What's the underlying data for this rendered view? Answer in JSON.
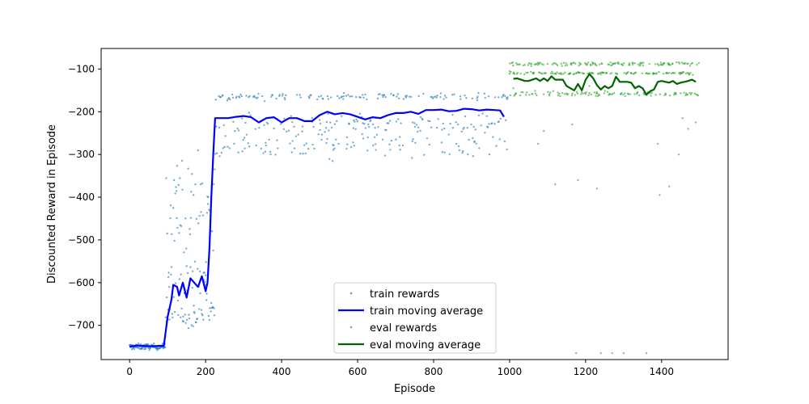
{
  "chart_data": {
    "type": "scatter",
    "title": "",
    "xlabel": "Episode",
    "ylabel": "Discounted Reward in Episode",
    "xlim": [
      -75,
      1575
    ],
    "ylim": [
      -780,
      -52
    ],
    "x_ticks": [
      0,
      200,
      400,
      600,
      800,
      1000,
      1200,
      1400
    ],
    "y_ticks": [
      -100,
      -200,
      -300,
      -400,
      -500,
      -600,
      -700
    ],
    "x_tick_labels": [
      "0",
      "200",
      "400",
      "600",
      "800",
      "1000",
      "1200",
      "1400"
    ],
    "y_tick_labels": [
      "−100",
      "−200",
      "−300",
      "−400",
      "−500",
      "−600",
      "−700"
    ],
    "grid": false,
    "legend_position": "bottom-center",
    "colors": {
      "train_rewards": "#1f77b4",
      "train_moving_average": "#0000ff",
      "eval_rewards": "#2ca02c",
      "eval_moving_average": "#006400"
    },
    "series": [
      {
        "name": "train rewards",
        "kind": "scatter",
        "segments": [
          {
            "x_start": 0,
            "x_end": 95,
            "clusters": [
              [
                -750,
                5
              ]
            ]
          },
          {
            "x_start": 95,
            "x_end": 205,
            "clusters": [
              [
                -680,
                18
              ],
              [
                -600,
                60
              ],
              [
                -420,
                90
              ]
            ]
          },
          {
            "x_start": 205,
            "x_end": 225,
            "clusters": [
              [
                -670,
                15
              ],
              [
                -400,
                120
              ]
            ]
          },
          {
            "x_start": 225,
            "x_end": 1000,
            "clusters": [
              [
                -165,
                6
              ],
              [
                -230,
                15
              ],
              [
                -280,
                25
              ]
            ]
          }
        ]
      },
      {
        "name": "train moving average",
        "kind": "line",
        "x": [
          0,
          20,
          50,
          80,
          90,
          100,
          110,
          115,
          125,
          130,
          140,
          150,
          160,
          170,
          180,
          190,
          200,
          205,
          210,
          215,
          220,
          225,
          240,
          260,
          280,
          300,
          320,
          340,
          360,
          380,
          400,
          420,
          440,
          460,
          480,
          500,
          520,
          540,
          560,
          580,
          600,
          620,
          640,
          660,
          680,
          700,
          720,
          740,
          760,
          780,
          800,
          820,
          840,
          860,
          880,
          900,
          920,
          940,
          960,
          975,
          985
        ],
        "y": [
          -750,
          -747,
          -749,
          -748,
          -748,
          -680,
          -640,
          -605,
          -610,
          -630,
          -600,
          -635,
          -590,
          -600,
          -610,
          -585,
          -620,
          -600,
          -520,
          -400,
          -300,
          -215,
          -215,
          -215,
          -212,
          -210,
          -213,
          -225,
          -215,
          -213,
          -225,
          -215,
          -215,
          -222,
          -222,
          -208,
          -200,
          -206,
          -203,
          -206,
          -212,
          -218,
          -213,
          -215,
          -208,
          -203,
          -203,
          -200,
          -205,
          -196,
          -196,
          -195,
          -199,
          -198,
          -193,
          -194,
          -197,
          -195,
          -196,
          -197,
          -212
        ]
      },
      {
        "name": "eval rewards",
        "kind": "scatter",
        "segments": [
          {
            "x_start": 1000,
            "x_end": 1500,
            "clusters": [
              [
                -88,
                3
              ],
              [
                -110,
                2
              ],
              [
                -158,
                4
              ]
            ]
          }
        ],
        "outliers": [
          [
            1000,
            -105
          ],
          [
            1010,
            -145
          ],
          [
            1075,
            -275
          ],
          [
            1090,
            -245
          ],
          [
            1120,
            -370
          ],
          [
            1165,
            -230
          ],
          [
            1175,
            -765
          ],
          [
            1180,
            -360
          ],
          [
            1210,
            -140
          ],
          [
            1230,
            -380
          ],
          [
            1240,
            -765
          ],
          [
            1270,
            -765
          ],
          [
            1300,
            -765
          ],
          [
            1360,
            -765
          ],
          [
            1390,
            -275
          ],
          [
            1395,
            -395
          ],
          [
            1420,
            -375
          ],
          [
            1445,
            -300
          ],
          [
            1455,
            -215
          ],
          [
            1470,
            -240
          ],
          [
            1490,
            -225
          ]
        ]
      },
      {
        "name": "eval moving average",
        "kind": "line",
        "x": [
          1010,
          1020,
          1030,
          1040,
          1050,
          1060,
          1070,
          1080,
          1090,
          1100,
          1110,
          1120,
          1130,
          1140,
          1150,
          1160,
          1170,
          1180,
          1190,
          1200,
          1210,
          1220,
          1230,
          1240,
          1250,
          1260,
          1270,
          1280,
          1290,
          1300,
          1310,
          1320,
          1330,
          1340,
          1350,
          1360,
          1370,
          1380,
          1390,
          1400,
          1410,
          1420,
          1430,
          1440,
          1450,
          1460,
          1470,
          1480,
          1490
        ],
        "y": [
          -123,
          -122,
          -125,
          -128,
          -128,
          -125,
          -122,
          -128,
          -122,
          -128,
          -117,
          -125,
          -125,
          -125,
          -140,
          -145,
          -150,
          -135,
          -150,
          -125,
          -112,
          -122,
          -138,
          -148,
          -140,
          -145,
          -140,
          -118,
          -130,
          -130,
          -130,
          -132,
          -145,
          -140,
          -145,
          -160,
          -152,
          -148,
          -130,
          -128,
          -130,
          -132,
          -128,
          -135,
          -132,
          -130,
          -128,
          -125,
          -130
        ]
      }
    ]
  }
}
